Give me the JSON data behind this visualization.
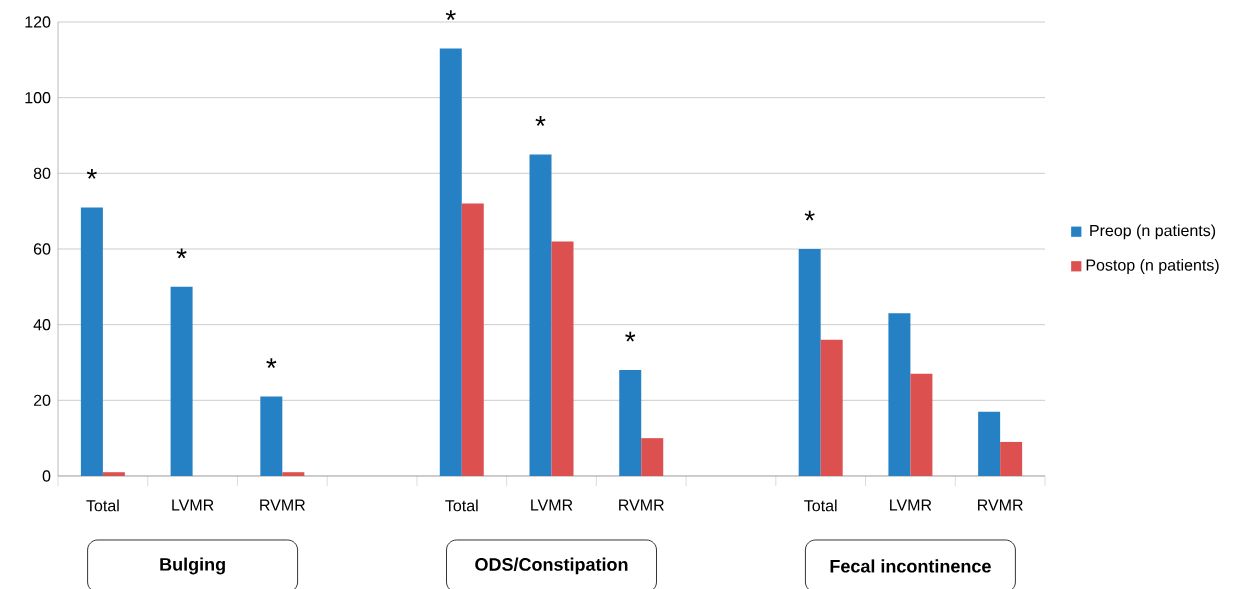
{
  "chart_data": {
    "type": "bar",
    "categories": [
      "Total",
      "LVMR",
      "RVMR",
      null,
      "Total",
      "LVMR",
      "RVMR",
      null,
      "Total",
      "LVMR",
      "RVMR"
    ],
    "series": [
      {
        "name": "Preop (n patients)",
        "color": "#2581c4",
        "values": [
          71,
          50,
          21,
          null,
          113,
          85,
          28,
          null,
          60,
          43,
          17
        ],
        "value_labels": [
          "*",
          "*",
          "*",
          null,
          "*",
          "*",
          "*",
          null,
          "*",
          null,
          null
        ]
      },
      {
        "name": "Postop (n patients)",
        "color": "#dd5050",
        "values": [
          1,
          0,
          1,
          null,
          72,
          62,
          10,
          null,
          36,
          27,
          9
        ]
      }
    ],
    "ylim": [
      0,
      120
    ],
    "yticks": [
      0,
      20,
      40,
      60,
      80,
      100,
      120
    ],
    "grid": "y",
    "legend": "right",
    "annotations": [
      "Bulging",
      "ODS/Constipation",
      "Fecal incontinence"
    ]
  }
}
